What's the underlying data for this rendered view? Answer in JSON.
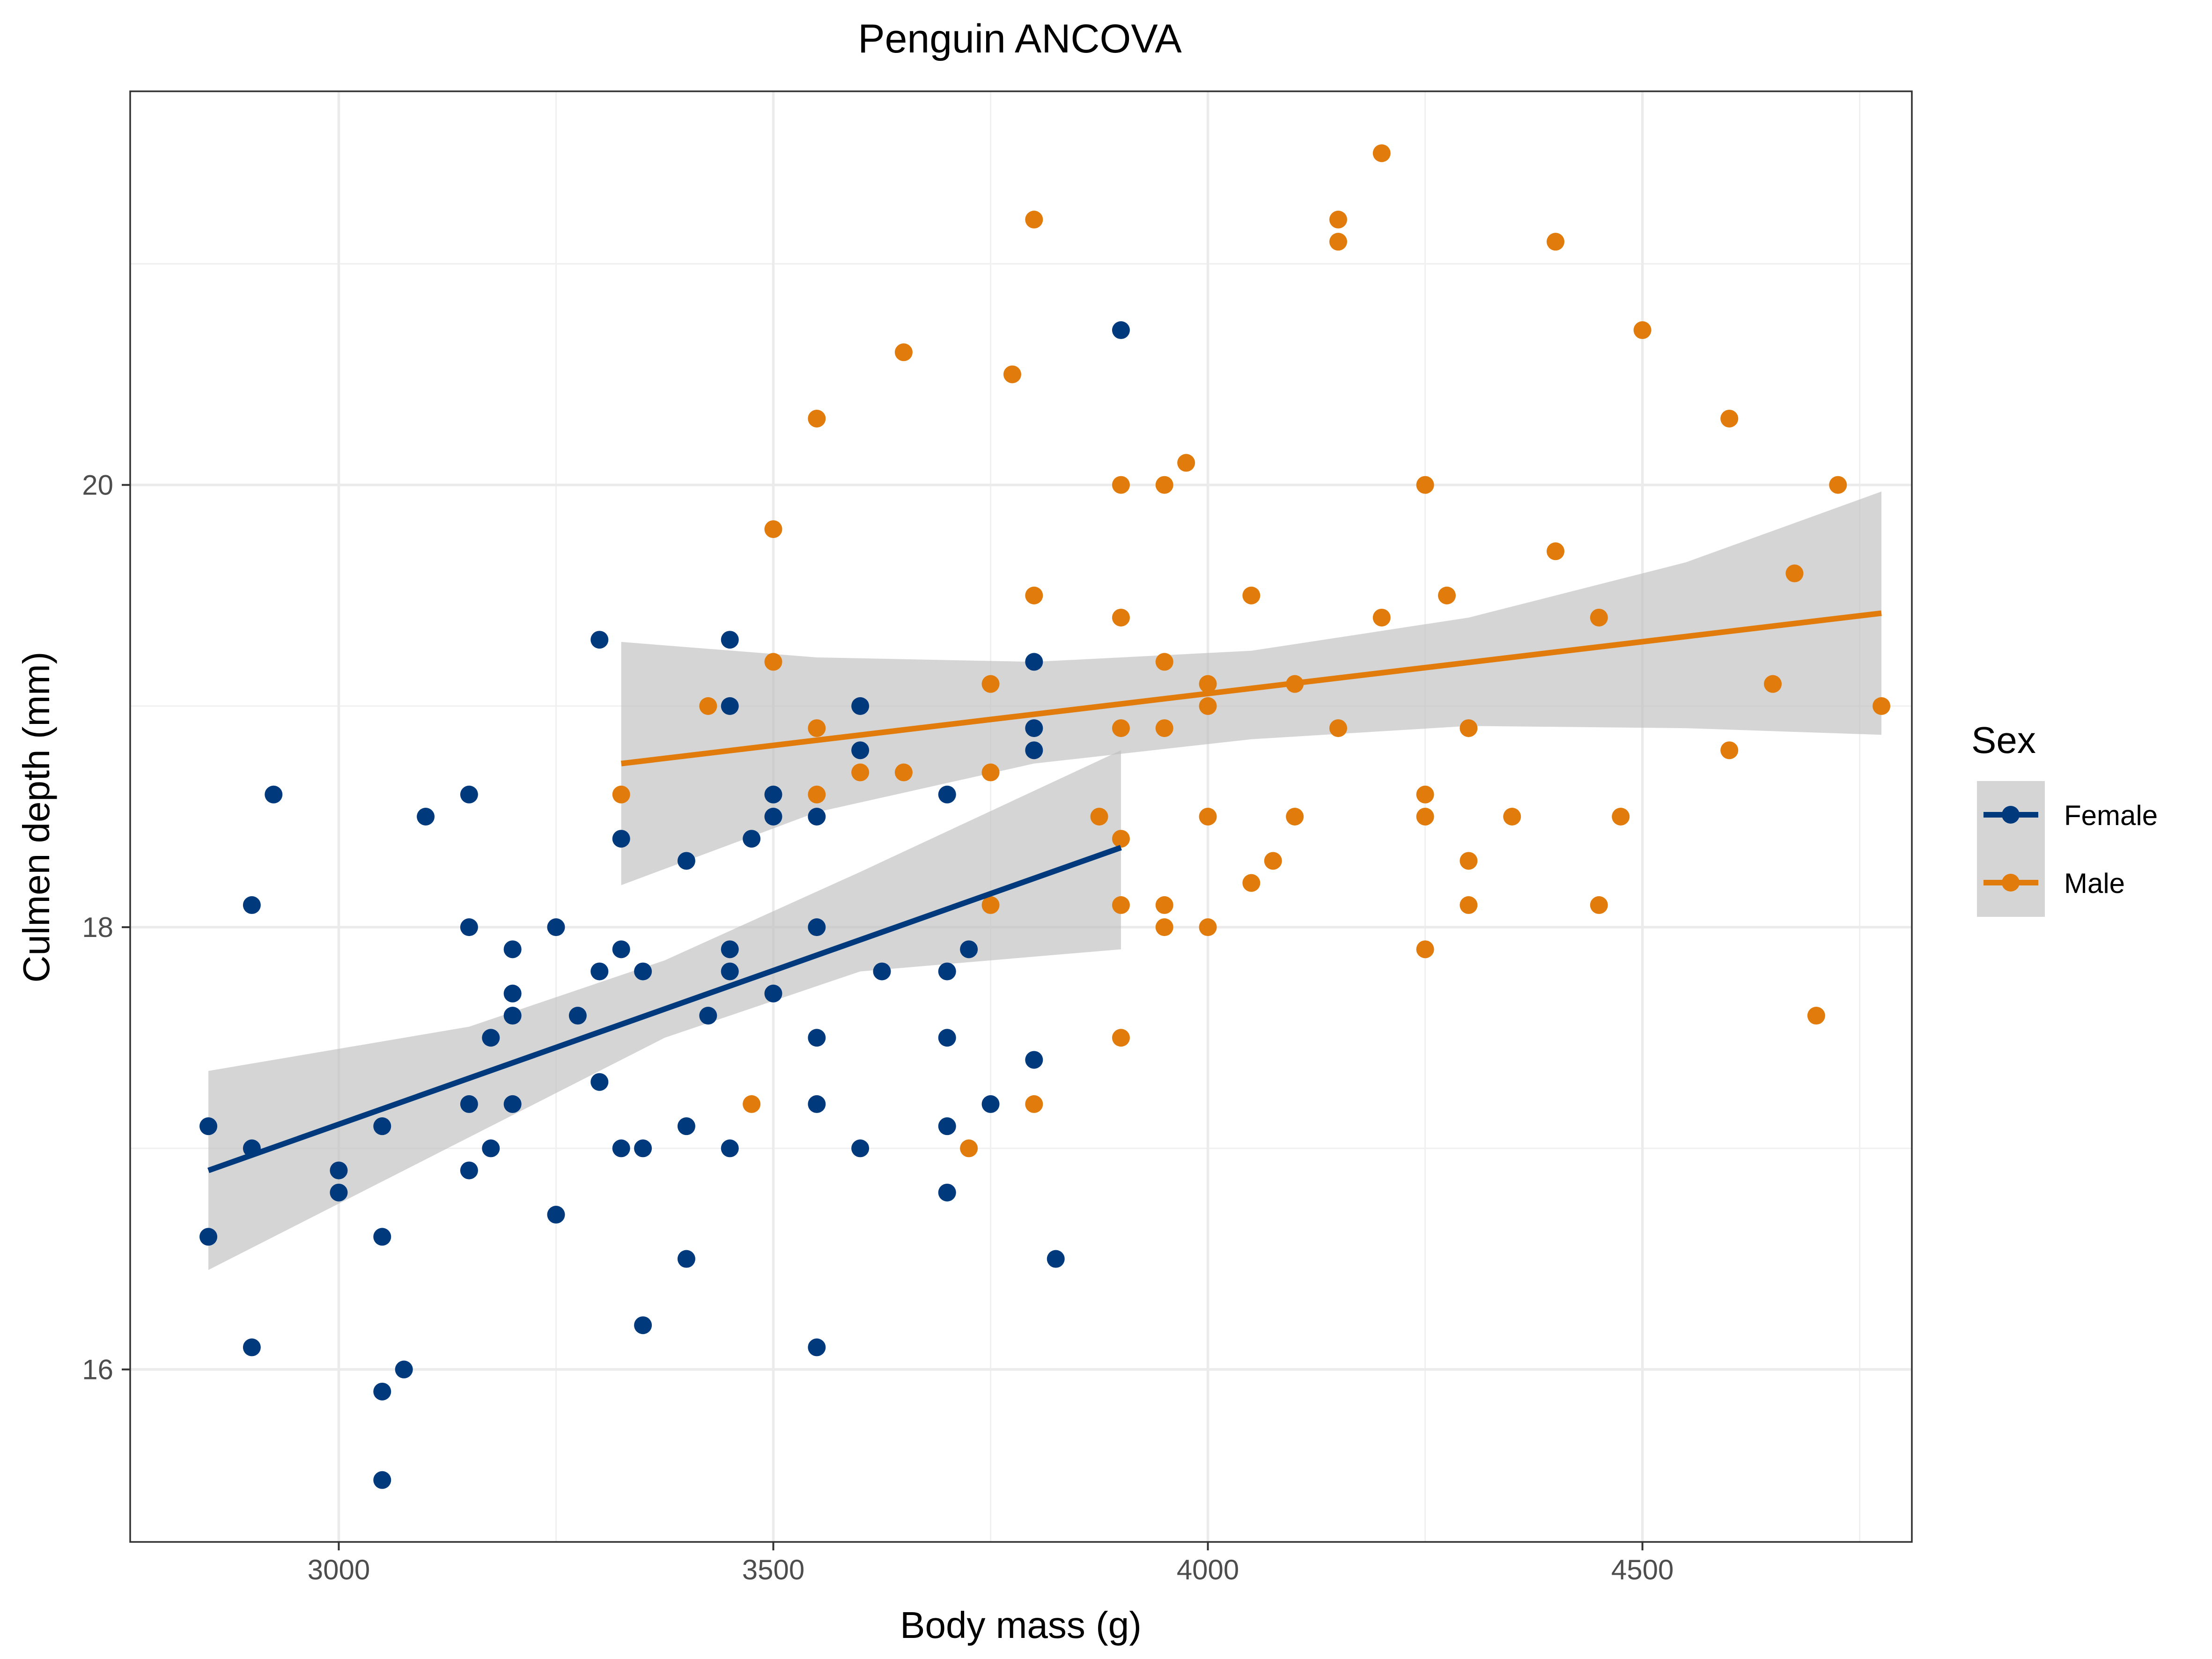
{
  "chart_data": {
    "type": "scatter",
    "title": "Penguin ANCOVA",
    "xlabel": "Body mass (g)",
    "ylabel": "Culmen depth (mm)",
    "xlim": [
      2760,
      4810
    ],
    "ylim": [
      15.22,
      21.78
    ],
    "xticks": [
      3000,
      3500,
      4000,
      4500
    ],
    "yticks": [
      16,
      18,
      20
    ],
    "grid": true,
    "legend": {
      "title": "Sex",
      "position": "right",
      "entries": [
        "Female",
        "Male"
      ]
    },
    "colors": {
      "Female": "#003a7d",
      "Male": "#e07b0c",
      "confidence_band": "#bfbfbf"
    },
    "series": [
      {
        "name": "Female",
        "points": [
          [
            2850,
            17.1
          ],
          [
            2850,
            16.6
          ],
          [
            2900,
            17.0
          ],
          [
            2900,
            18.1
          ],
          [
            2900,
            16.1
          ],
          [
            2925,
            18.6
          ],
          [
            3000,
            16.9
          ],
          [
            3000,
            16.8
          ],
          [
            3050,
            17.1
          ],
          [
            3050,
            16.6
          ],
          [
            3050,
            15.9
          ],
          [
            3050,
            15.5
          ],
          [
            3075,
            16.0
          ],
          [
            3100,
            18.5
          ],
          [
            3150,
            18.6
          ],
          [
            3150,
            18.0
          ],
          [
            3150,
            17.2
          ],
          [
            3150,
            16.9
          ],
          [
            3175,
            17.5
          ],
          [
            3175,
            17.0
          ],
          [
            3200,
            17.9
          ],
          [
            3200,
            17.7
          ],
          [
            3200,
            17.6
          ],
          [
            3200,
            17.2
          ],
          [
            3250,
            18.0
          ],
          [
            3250,
            16.7
          ],
          [
            3275,
            17.6
          ],
          [
            3300,
            19.3
          ],
          [
            3300,
            17.8
          ],
          [
            3300,
            17.3
          ],
          [
            3325,
            18.4
          ],
          [
            3325,
            17.9
          ],
          [
            3325,
            17.0
          ],
          [
            3350,
            17.8
          ],
          [
            3350,
            17.0
          ],
          [
            3350,
            16.2
          ],
          [
            3400,
            18.3
          ],
          [
            3400,
            17.1
          ],
          [
            3400,
            16.5
          ],
          [
            3425,
            17.6
          ],
          [
            3450,
            19.3
          ],
          [
            3450,
            19.0
          ],
          [
            3450,
            17.9
          ],
          [
            3450,
            17.8
          ],
          [
            3450,
            17.0
          ],
          [
            3475,
            18.4
          ],
          [
            3500,
            18.6
          ],
          [
            3500,
            18.5
          ],
          [
            3500,
            17.7
          ],
          [
            3550,
            18.5
          ],
          [
            3550,
            18.0
          ],
          [
            3550,
            17.5
          ],
          [
            3550,
            17.2
          ],
          [
            3550,
            16.1
          ],
          [
            3600,
            19.0
          ],
          [
            3600,
            18.8
          ],
          [
            3600,
            17.0
          ],
          [
            3625,
            17.8
          ],
          [
            3700,
            18.6
          ],
          [
            3700,
            17.8
          ],
          [
            3700,
            17.5
          ],
          [
            3700,
            17.1
          ],
          [
            3700,
            16.8
          ],
          [
            3725,
            17.9
          ],
          [
            3750,
            17.2
          ],
          [
            3800,
            19.2
          ],
          [
            3800,
            18.9
          ],
          [
            3800,
            18.8
          ],
          [
            3800,
            17.4
          ],
          [
            3825,
            16.5
          ],
          [
            3900,
            20.7
          ]
        ],
        "fit": {
          "x": [
            2850,
            3900
          ],
          "y": [
            16.9,
            18.36
          ]
        },
        "band": {
          "x": [
            2850,
            3150,
            3375,
            3600,
            3900
          ],
          "upper": [
            17.35,
            17.55,
            17.85,
            18.25,
            18.8
          ],
          "lower": [
            16.45,
            17.05,
            17.5,
            17.8,
            17.9
          ]
        }
      },
      {
        "name": "Male",
        "points": [
          [
            3325,
            18.6
          ],
          [
            3425,
            19.0
          ],
          [
            3475,
            17.2
          ],
          [
            3500,
            19.8
          ],
          [
            3500,
            19.2
          ],
          [
            3550,
            20.3
          ],
          [
            3550,
            18.9
          ],
          [
            3550,
            18.6
          ],
          [
            3600,
            18.7
          ],
          [
            3650,
            20.6
          ],
          [
            3650,
            18.7
          ],
          [
            3725,
            17.0
          ],
          [
            3750,
            19.1
          ],
          [
            3750,
            18.7
          ],
          [
            3750,
            18.1
          ],
          [
            3775,
            20.5
          ],
          [
            3800,
            21.2
          ],
          [
            3800,
            19.5
          ],
          [
            3800,
            17.2
          ],
          [
            3875,
            18.5
          ],
          [
            3900,
            20.0
          ],
          [
            3900,
            19.4
          ],
          [
            3900,
            18.9
          ],
          [
            3900,
            18.4
          ],
          [
            3900,
            18.1
          ],
          [
            3900,
            17.5
          ],
          [
            3950,
            20.0
          ],
          [
            3950,
            19.2
          ],
          [
            3950,
            18.9
          ],
          [
            3950,
            18.1
          ],
          [
            3950,
            18.0
          ],
          [
            3975,
            20.1
          ],
          [
            4000,
            19.1
          ],
          [
            4000,
            19.0
          ],
          [
            4000,
            18.5
          ],
          [
            4000,
            18.0
          ],
          [
            4050,
            19.5
          ],
          [
            4050,
            18.2
          ],
          [
            4075,
            18.3
          ],
          [
            4100,
            19.1
          ],
          [
            4100,
            18.5
          ],
          [
            4150,
            21.2
          ],
          [
            4150,
            21.1
          ],
          [
            4150,
            18.9
          ],
          [
            4200,
            21.5
          ],
          [
            4200,
            19.4
          ],
          [
            4250,
            20.0
          ],
          [
            4250,
            18.6
          ],
          [
            4250,
            18.5
          ],
          [
            4250,
            17.9
          ],
          [
            4275,
            19.5
          ],
          [
            4300,
            18.9
          ],
          [
            4300,
            18.3
          ],
          [
            4300,
            18.1
          ],
          [
            4350,
            18.5
          ],
          [
            4400,
            21.1
          ],
          [
            4400,
            19.7
          ],
          [
            4450,
            19.4
          ],
          [
            4450,
            18.1
          ],
          [
            4475,
            18.5
          ],
          [
            4500,
            20.7
          ],
          [
            4600,
            20.3
          ],
          [
            4600,
            18.8
          ],
          [
            4650,
            19.1
          ],
          [
            4675,
            19.6
          ],
          [
            4700,
            17.6
          ],
          [
            4725,
            20.0
          ],
          [
            4775,
            19.0
          ]
        ],
        "fit": {
          "x": [
            3325,
            4775
          ],
          "y": [
            18.74,
            19.42
          ]
        },
        "band": {
          "x": [
            3325,
            3550,
            3800,
            4050,
            4300,
            4550,
            4775
          ],
          "upper": [
            19.29,
            19.22,
            19.2,
            19.25,
            19.4,
            19.65,
            19.97
          ],
          "lower": [
            18.19,
            18.52,
            18.74,
            18.85,
            18.91,
            18.9,
            18.87
          ]
        }
      }
    ]
  }
}
